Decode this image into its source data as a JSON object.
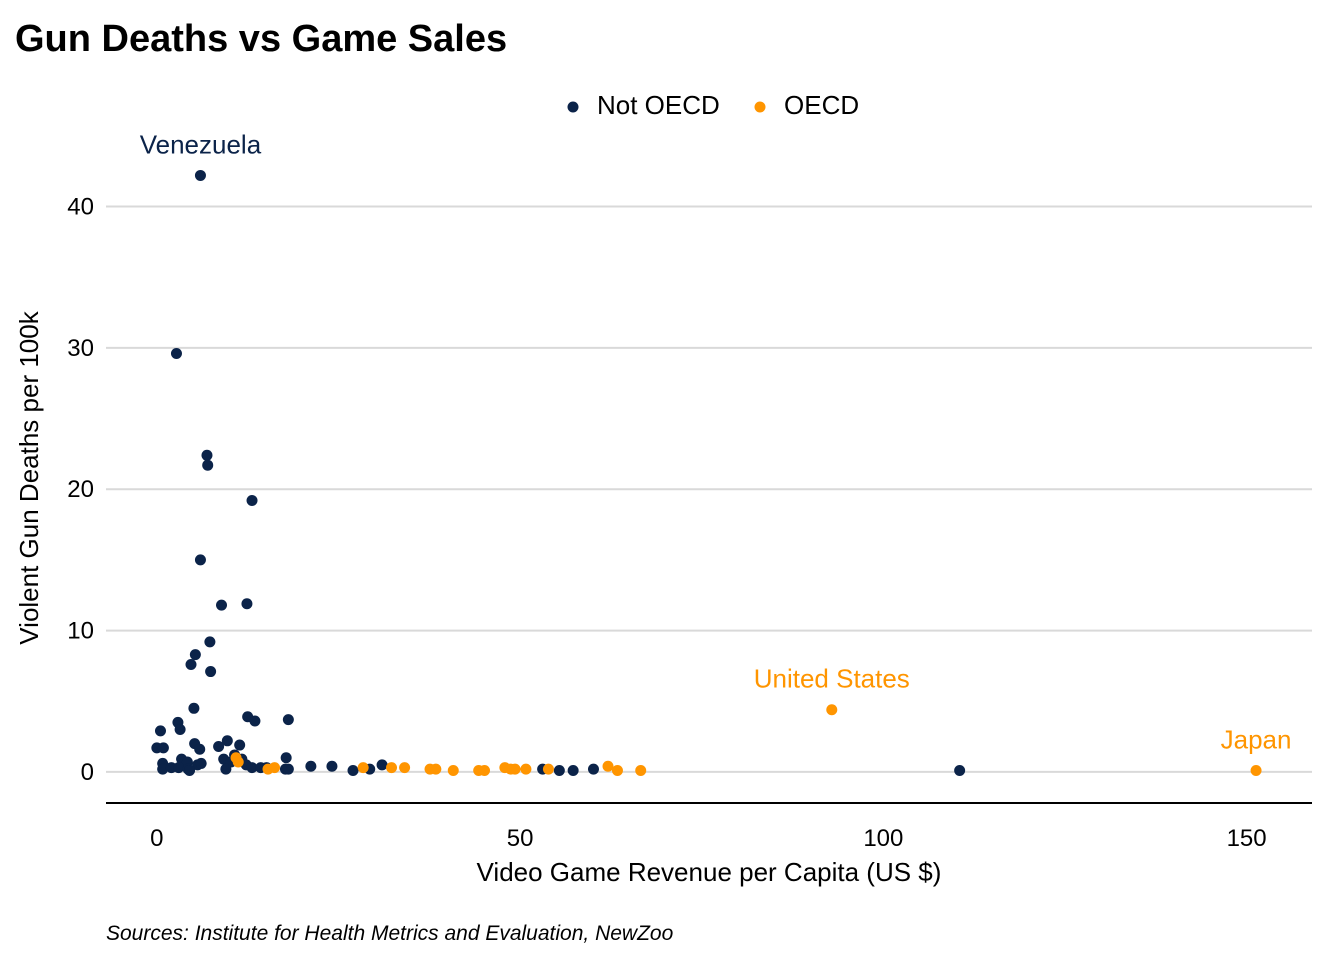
{
  "chart_data": {
    "type": "scatter",
    "title": "Gun Deaths vs Game Sales",
    "xlabel": "Video Game Revenue per Capita (US $)",
    "ylabel": "Violent Gun Deaths per 100k",
    "caption": "Sources: Institute for Health Metrics and Evaluation, NewZoo",
    "xlim": [
      -7,
      159
    ],
    "ylim": [
      -2.2,
      44
    ],
    "x_ticks": [
      0,
      50,
      100,
      150
    ],
    "y_ticks": [
      0,
      10,
      20,
      30,
      40
    ],
    "grid": "horizontal major",
    "legend_position": "top-center",
    "colors": {
      "Not OECD": "#0b2349",
      "OECD": "#ff9500"
    },
    "series": [
      {
        "name": "Not OECD",
        "color": "#0b2349",
        "points": [
          [
            6.0,
            42.2
          ],
          [
            2.7,
            29.6
          ],
          [
            6.9,
            22.4
          ],
          [
            7.0,
            21.7
          ],
          [
            13.1,
            19.2
          ],
          [
            6.0,
            15.0
          ],
          [
            8.9,
            11.8
          ],
          [
            12.4,
            11.9
          ],
          [
            7.3,
            9.2
          ],
          [
            5.3,
            8.3
          ],
          [
            4.7,
            7.6
          ],
          [
            7.4,
            7.1
          ],
          [
            5.1,
            4.5
          ],
          [
            12.5,
            3.9
          ],
          [
            13.5,
            3.6
          ],
          [
            18.1,
            3.7
          ],
          [
            2.9,
            3.5
          ],
          [
            3.2,
            3.0
          ],
          [
            0.5,
            2.9
          ],
          [
            5.2,
            2.0
          ],
          [
            9.7,
            2.2
          ],
          [
            11.4,
            1.9
          ],
          [
            0.0,
            1.7
          ],
          [
            0.9,
            1.7
          ],
          [
            5.9,
            1.6
          ],
          [
            8.5,
            1.8
          ],
          [
            17.8,
            1.0
          ],
          [
            9.2,
            0.9
          ],
          [
            0.8,
            0.6
          ],
          [
            3.4,
            0.9
          ],
          [
            4.2,
            0.7
          ],
          [
            5.6,
            0.5
          ],
          [
            6.1,
            0.6
          ],
          [
            10.2,
            0.7
          ],
          [
            10.7,
            1.2
          ],
          [
            11.7,
            0.9
          ],
          [
            12.3,
            0.5
          ],
          [
            0.8,
            0.2
          ],
          [
            2.0,
            0.3
          ],
          [
            3.0,
            0.3
          ],
          [
            4.3,
            0.2
          ],
          [
            4.5,
            0.1
          ],
          [
            9.5,
            0.2
          ],
          [
            13.1,
            0.3
          ],
          [
            14.3,
            0.3
          ],
          [
            15.1,
            0.3
          ],
          [
            17.7,
            0.2
          ],
          [
            18.1,
            0.2
          ],
          [
            21.2,
            0.4
          ],
          [
            24.1,
            0.4
          ],
          [
            27.0,
            0.1
          ],
          [
            29.3,
            0.2
          ],
          [
            31.0,
            0.5
          ],
          [
            53.1,
            0.2
          ],
          [
            55.4,
            0.1
          ],
          [
            57.3,
            0.1
          ],
          [
            60.1,
            0.2
          ],
          [
            110.5,
            0.1
          ]
        ]
      },
      {
        "name": "OECD",
        "color": "#ff9500",
        "points": [
          [
            92.9,
            4.4
          ],
          [
            151.3,
            0.1
          ],
          [
            10.9,
            1.0
          ],
          [
            11.2,
            0.7
          ],
          [
            15.3,
            0.2
          ],
          [
            16.2,
            0.3
          ],
          [
            28.4,
            0.3
          ],
          [
            32.3,
            0.3
          ],
          [
            34.1,
            0.3
          ],
          [
            37.6,
            0.2
          ],
          [
            38.4,
            0.2
          ],
          [
            40.8,
            0.1
          ],
          [
            44.3,
            0.1
          ],
          [
            45.1,
            0.1
          ],
          [
            47.9,
            0.3
          ],
          [
            48.7,
            0.2
          ],
          [
            49.3,
            0.2
          ],
          [
            50.8,
            0.2
          ],
          [
            53.9,
            0.2
          ],
          [
            62.1,
            0.4
          ],
          [
            63.4,
            0.1
          ],
          [
            66.6,
            0.1
          ]
        ]
      }
    ],
    "annotations": [
      {
        "text": "Venezuela",
        "x": 6.0,
        "y": 42.2,
        "series": "Not OECD"
      },
      {
        "text": "United States",
        "x": 92.9,
        "y": 4.4,
        "series": "OECD"
      },
      {
        "text": "Japan",
        "x": 151.3,
        "y": 0.1,
        "series": "OECD"
      }
    ]
  }
}
